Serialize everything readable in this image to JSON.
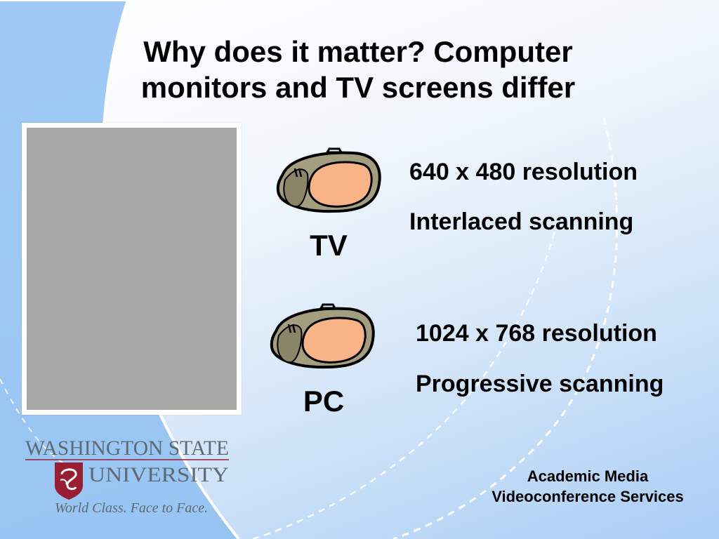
{
  "slide": {
    "title_line1": "Why does it matter? Computer",
    "title_line2": "monitors and TV screens differ",
    "devices": [
      {
        "label": "TV",
        "specs": [
          "640 x 480 resolution",
          "Interlaced scanning"
        ]
      },
      {
        "label": "PC",
        "specs": [
          "1024 x 768 resolution",
          "Progressive scanning"
        ]
      }
    ],
    "logo": {
      "line1": "WASHINGTON STATE",
      "line2": "UNIVERSITY",
      "tagline": "World Class. Face to Face."
    },
    "footer": {
      "line1": "Academic Media",
      "line2": "Videoconference Services"
    }
  },
  "colors": {
    "wsu_crimson": "#981e32",
    "wsu_gray": "#5e6a71",
    "tv_body": "#a39e7d",
    "tv_screen": "#f8b486",
    "photo_placeholder": "#a6a6a6"
  },
  "icons": [
    "tv-icon",
    "tv-icon",
    "wsu-cougar-seal"
  ]
}
